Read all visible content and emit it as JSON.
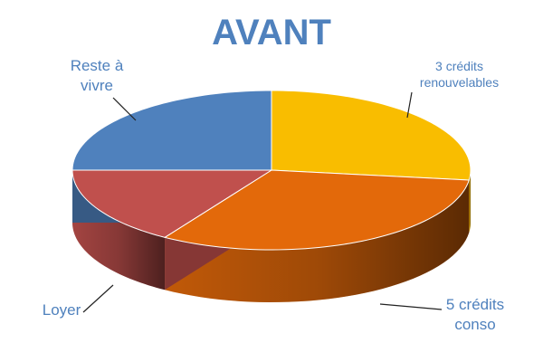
{
  "chart_data": {
    "type": "pie3d",
    "title": "AVANT",
    "categories": [
      "3 crédits renouvelables",
      "5 crédits conso",
      "Loyer",
      "Reste à vivre"
    ],
    "values": [
      27,
      32,
      16,
      25
    ],
    "colors": [
      "#f9bd00",
      "#e3690a",
      "#c0504d",
      "#4f81bd"
    ]
  }
}
